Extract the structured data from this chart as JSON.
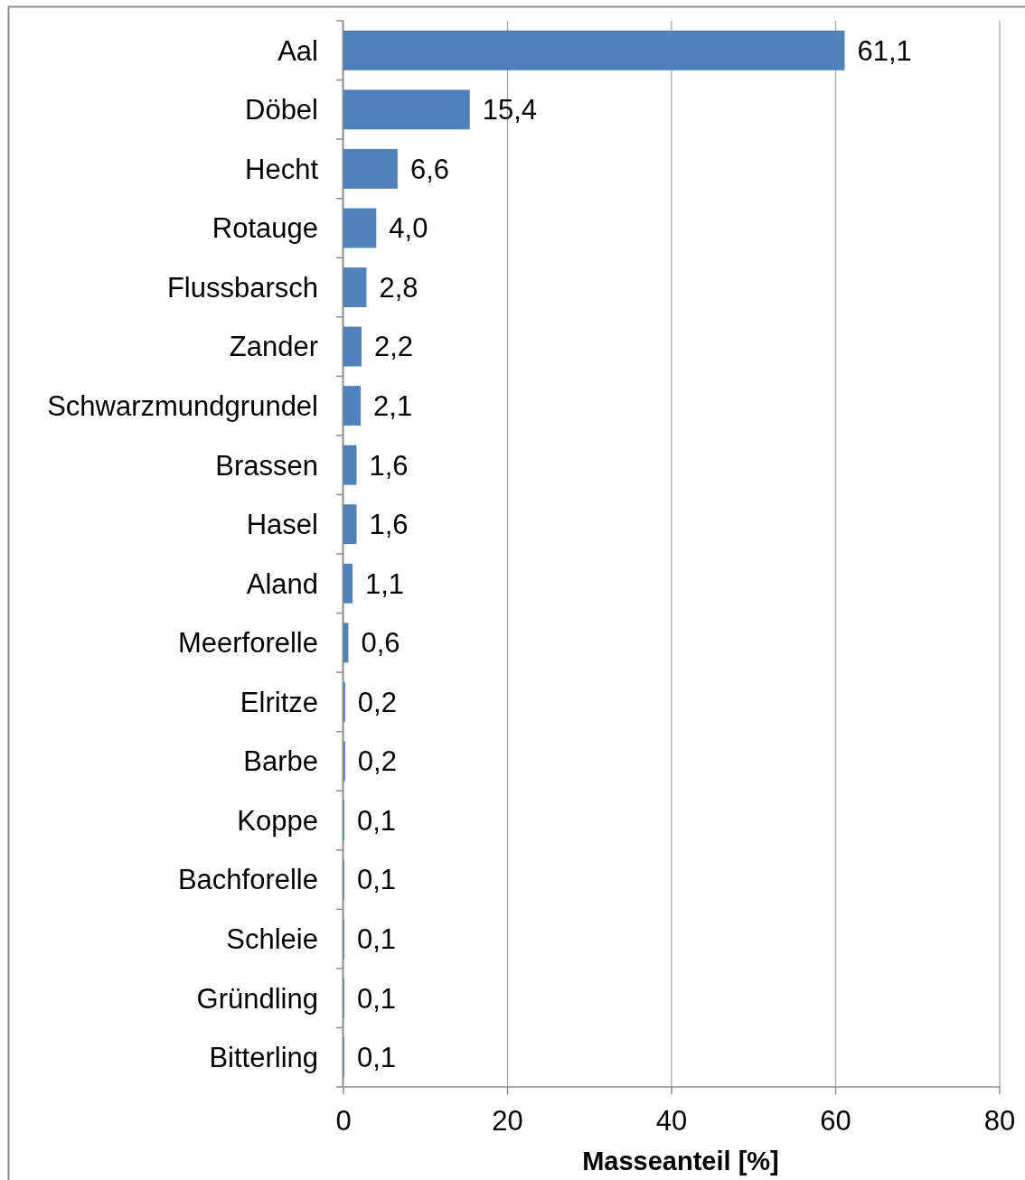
{
  "chart_data": {
    "type": "bar",
    "orientation": "horizontal",
    "xlabel": "Masseanteil [%]",
    "categories": [
      "Aal",
      "Döbel",
      "Hecht",
      "Rotauge",
      "Flussbarsch",
      "Zander",
      "Schwarzmundgrundel",
      "Brassen",
      "Hasel",
      "Aland",
      "Meerforelle",
      "Elritze",
      "Barbe",
      "Koppe",
      "Bachforelle",
      "Schleie",
      "Gründling",
      "Bitterling"
    ],
    "values": [
      61.1,
      15.4,
      6.6,
      4.0,
      2.8,
      2.2,
      2.1,
      1.6,
      1.6,
      1.1,
      0.6,
      0.2,
      0.2,
      0.1,
      0.1,
      0.1,
      0.1,
      0.1
    ],
    "value_labels": [
      "61,1",
      "15,4",
      "6,6",
      "4,0",
      "2,8",
      "2,2",
      "2,1",
      "1,6",
      "1,6",
      "1,1",
      "0,6",
      "0,2",
      "0,2",
      "0,1",
      "0,1",
      "0,1",
      "0,1",
      "0,1"
    ],
    "color": "#4f81bd",
    "xlim": [
      0,
      80
    ],
    "xticks": [
      0,
      20,
      40,
      60,
      80
    ],
    "grid": "x"
  }
}
